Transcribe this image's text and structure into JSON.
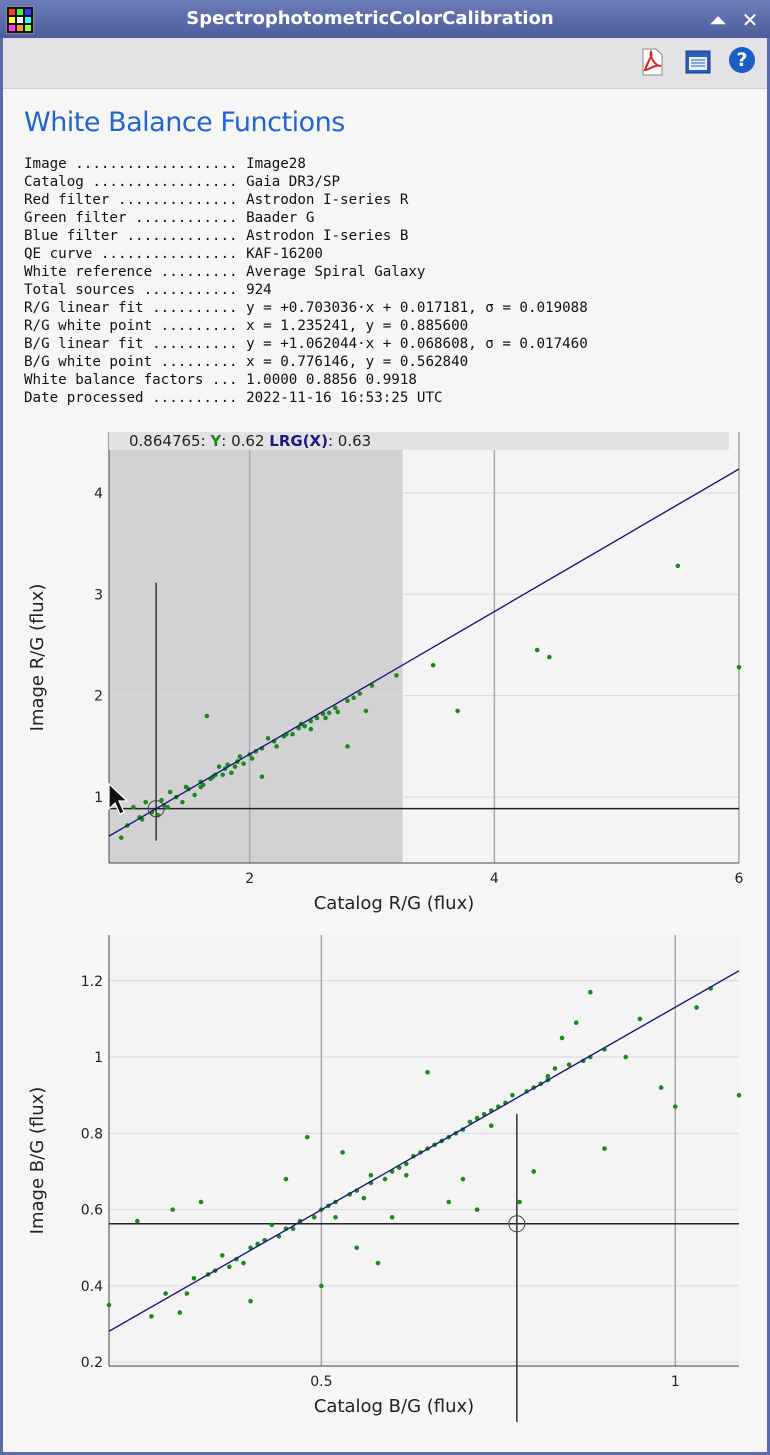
{
  "window": {
    "title": "SpectrophotometricColorCalibration"
  },
  "toolbar": {
    "pdf_icon": "pdf-export-icon",
    "report_icon": "report-icon",
    "help_icon": "help-icon",
    "help_label": "?"
  },
  "titlebar": {
    "shade_label": "⏶",
    "close_label": "✕"
  },
  "heading": "White Balance Functions",
  "info": [
    {
      "label": "Image ...................",
      "value": "Image28"
    },
    {
      "label": "Catalog .................",
      "value": "Gaia DR3/SP"
    },
    {
      "label": "Red filter ..............",
      "value": "Astrodon I-series R"
    },
    {
      "label": "Green filter ............",
      "value": "Baader G"
    },
    {
      "label": "Blue filter .............",
      "value": "Astrodon I-series B"
    },
    {
      "label": "QE curve ................",
      "value": "KAF-16200"
    },
    {
      "label": "White reference .........",
      "value": "Average Spiral Galaxy"
    },
    {
      "label": "Total sources ...........",
      "value": "924"
    },
    {
      "label": "R/G linear fit ..........",
      "value": "y = +0.703036·x + 0.017181, σ = 0.019088"
    },
    {
      "label": "R/G white point .........",
      "value": "x = 1.235241, y = 0.885600"
    },
    {
      "label": "B/G linear fit ..........",
      "value": "y = +1.062044·x + 0.068608, σ = 0.017460"
    },
    {
      "label": "B/G white point .........",
      "value": "x = 0.776146, y = 0.562840"
    },
    {
      "label": "White balance factors ...",
      "value": "1.0000 0.8856 0.9918"
    },
    {
      "label": "Date processed ..........",
      "value": "2022-11-16 16:53:25 UTC"
    }
  ],
  "tooltip": {
    "prefix": "0.864765: ",
    "y_label": "Y",
    "y_value": ": 0.62 ",
    "lrg_label": "LRG(X)",
    "lrg_value": ": 0.63"
  },
  "chart_data": [
    {
      "type": "scatter",
      "xlabel": "Catalog R/G (flux)",
      "ylabel": "Image R/G (flux)",
      "xlim": [
        0.85,
        6.0
      ],
      "ylim": [
        0.35,
        4.6
      ],
      "xticks": [
        2,
        4,
        6
      ],
      "yticks": [
        1,
        2,
        3,
        4
      ],
      "x_gridlines": [
        2,
        4,
        6
      ],
      "fit": {
        "slope": 0.703036,
        "intercept": 0.017181
      },
      "white_point": {
        "x": 1.235241,
        "y": 0.8856
      },
      "selection": {
        "x_from": 0.85,
        "x_to": 3.25
      },
      "point_color": "#1a8a1a",
      "line_color": "#1a1a80",
      "points": [
        [
          1.2,
          0.85
        ],
        [
          1.3,
          0.92
        ],
        [
          1.4,
          1.0
        ],
        [
          1.5,
          1.08
        ],
        [
          1.6,
          1.15
        ],
        [
          1.7,
          1.2
        ],
        [
          1.8,
          1.28
        ],
        [
          1.9,
          1.35
        ],
        [
          2.0,
          1.42
        ],
        [
          2.1,
          1.48
        ],
        [
          2.2,
          1.55
        ],
        [
          2.3,
          1.62
        ],
        [
          2.4,
          1.68
        ],
        [
          2.5,
          1.75
        ],
        [
          2.6,
          1.82
        ],
        [
          2.7,
          1.88
        ],
        [
          2.8,
          1.95
        ],
        [
          2.9,
          2.02
        ],
        [
          3.0,
          2.1
        ],
        [
          1.35,
          1.05
        ],
        [
          1.55,
          1.02
        ],
        [
          1.75,
          1.3
        ],
        [
          1.95,
          1.33
        ],
        [
          2.15,
          1.58
        ],
        [
          2.45,
          1.7
        ],
        [
          1.65,
          1.8
        ],
        [
          2.1,
          1.2
        ],
        [
          2.8,
          1.5
        ],
        [
          2.95,
          1.85
        ],
        [
          3.2,
          2.2
        ],
        [
          3.5,
          2.3
        ],
        [
          3.7,
          1.85
        ],
        [
          4.35,
          2.45
        ],
        [
          4.45,
          2.38
        ],
        [
          5.5,
          3.28
        ],
        [
          6.0,
          2.28
        ],
        [
          1.1,
          0.8
        ],
        [
          1.0,
          0.72
        ],
        [
          1.15,
          0.95
        ],
        [
          1.25,
          0.82
        ],
        [
          1.45,
          0.95
        ],
        [
          1.85,
          1.24
        ],
        [
          2.05,
          1.45
        ],
        [
          2.35,
          1.62
        ],
        [
          2.65,
          1.83
        ],
        [
          1.6,
          1.1
        ],
        [
          1.72,
          1.22
        ],
        [
          1.92,
          1.4
        ],
        [
          2.55,
          1.78
        ],
        [
          0.95,
          0.6
        ],
        [
          1.05,
          0.9
        ],
        [
          1.12,
          0.78
        ],
        [
          1.33,
          0.9
        ],
        [
          1.62,
          1.12
        ],
        [
          1.78,
          1.22
        ],
        [
          1.88,
          1.3
        ],
        [
          2.22,
          1.5
        ],
        [
          2.5,
          1.67
        ],
        [
          2.72,
          1.84
        ],
        [
          1.28,
          0.97
        ],
        [
          1.48,
          1.1
        ],
        [
          1.68,
          1.18
        ],
        [
          1.82,
          1.32
        ],
        [
          2.02,
          1.38
        ],
        [
          2.28,
          1.6
        ],
        [
          2.42,
          1.72
        ],
        [
          2.62,
          1.78
        ],
        [
          2.85,
          1.98
        ]
      ]
    },
    {
      "type": "scatter",
      "xlabel": "Catalog B/G (flux)",
      "ylabel": "Image B/G (flux)",
      "xlim": [
        0.2,
        1.09
      ],
      "ylim": [
        0.19,
        1.32
      ],
      "xticks": [
        0.5,
        1
      ],
      "yticks": [
        0.2,
        0.4,
        0.6,
        0.8,
        1,
        1.2
      ],
      "x_gridlines": [
        0.5,
        1
      ],
      "fit": {
        "slope": 1.062044,
        "intercept": 0.068608
      },
      "white_point": {
        "x": 0.776146,
        "y": 0.56284
      },
      "point_color": "#1a8a1a",
      "line_color": "#1a1a80",
      "points": [
        [
          0.28,
          0.38
        ],
        [
          0.32,
          0.42
        ],
        [
          0.35,
          0.44
        ],
        [
          0.38,
          0.47
        ],
        [
          0.4,
          0.5
        ],
        [
          0.42,
          0.52
        ],
        [
          0.45,
          0.55
        ],
        [
          0.47,
          0.57
        ],
        [
          0.5,
          0.6
        ],
        [
          0.52,
          0.62
        ],
        [
          0.55,
          0.65
        ],
        [
          0.57,
          0.67
        ],
        [
          0.6,
          0.7
        ],
        [
          0.62,
          0.72
        ],
        [
          0.65,
          0.76
        ],
        [
          0.68,
          0.79
        ],
        [
          0.7,
          0.81
        ],
        [
          0.72,
          0.84
        ],
        [
          0.75,
          0.87
        ],
        [
          0.77,
          0.9
        ],
        [
          0.8,
          0.92
        ],
        [
          0.82,
          0.95
        ],
        [
          0.85,
          0.98
        ],
        [
          0.88,
          1.0
        ],
        [
          0.9,
          1.02
        ],
        [
          0.3,
          0.33
        ],
        [
          0.26,
          0.32
        ],
        [
          0.24,
          0.57
        ],
        [
          0.29,
          0.6
        ],
        [
          0.33,
          0.62
        ],
        [
          0.4,
          0.36
        ],
        [
          0.45,
          0.68
        ],
        [
          0.48,
          0.79
        ],
        [
          0.5,
          0.4
        ],
        [
          0.53,
          0.75
        ],
        [
          0.55,
          0.5
        ],
        [
          0.58,
          0.46
        ],
        [
          0.6,
          0.58
        ],
        [
          0.65,
          0.96
        ],
        [
          0.68,
          0.62
        ],
        [
          0.7,
          0.68
        ],
        [
          0.72,
          0.6
        ],
        [
          0.74,
          0.82
        ],
        [
          0.78,
          0.62
        ],
        [
          0.8,
          0.7
        ],
        [
          0.84,
          1.05
        ],
        [
          0.86,
          1.09
        ],
        [
          0.88,
          1.17
        ],
        [
          0.9,
          0.76
        ],
        [
          0.93,
          1.0
        ],
        [
          0.95,
          1.1
        ],
        [
          0.98,
          0.92
        ],
        [
          1.0,
          0.87
        ],
        [
          1.03,
          1.13
        ],
        [
          1.05,
          1.18
        ],
        [
          1.09,
          0.9
        ],
        [
          0.2,
          0.35
        ],
        [
          0.36,
          0.48
        ],
        [
          0.43,
          0.56
        ],
        [
          0.49,
          0.58
        ],
        [
          0.56,
          0.63
        ],
        [
          0.63,
          0.74
        ],
        [
          0.66,
          0.77
        ],
        [
          0.71,
          0.83
        ],
        [
          0.76,
          0.88
        ],
        [
          0.81,
          0.93
        ],
        [
          0.83,
          0.97
        ],
        [
          0.87,
          0.99
        ],
        [
          0.34,
          0.43
        ],
        [
          0.39,
          0.46
        ],
        [
          0.44,
          0.53
        ],
        [
          0.51,
          0.61
        ],
        [
          0.54,
          0.64
        ],
        [
          0.59,
          0.68
        ],
        [
          0.61,
          0.71
        ],
        [
          0.64,
          0.75
        ],
        [
          0.67,
          0.78
        ],
        [
          0.73,
          0.85
        ],
        [
          0.79,
          0.91
        ],
        [
          0.31,
          0.38
        ],
        [
          0.37,
          0.45
        ],
        [
          0.41,
          0.51
        ],
        [
          0.46,
          0.55
        ],
        [
          0.52,
          0.58
        ],
        [
          0.57,
          0.69
        ],
        [
          0.62,
          0.69
        ],
        [
          0.69,
          0.8
        ],
        [
          0.74,
          0.86
        ],
        [
          0.82,
          0.94
        ]
      ]
    }
  ]
}
